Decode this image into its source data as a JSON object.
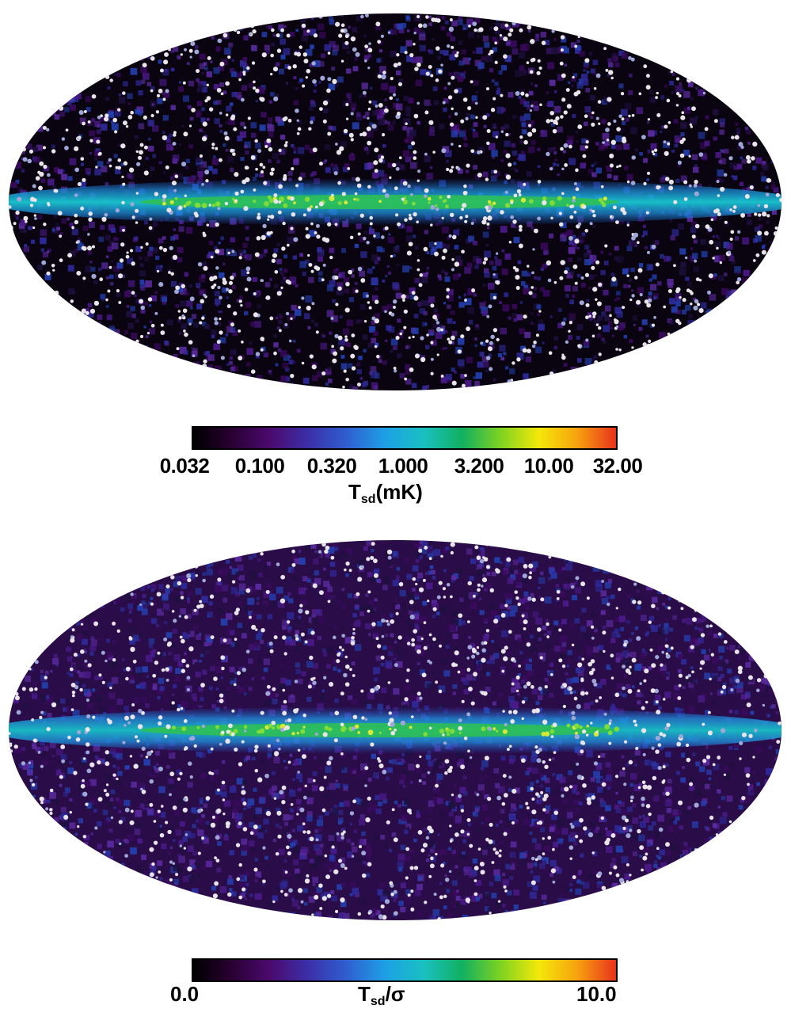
{
  "maps": [
    {
      "id": "tsd-map",
      "colorbar": {
        "ticks": [
          "0.032",
          "0.100",
          "0.320",
          "1.000",
          "3.200",
          "10.00",
          "32.00"
        ],
        "label_main": "T",
        "label_sub": "sd",
        "label_tail": "(mK)"
      }
    },
    {
      "id": "snr-map",
      "colorbar": {
        "tick_min": "0.0",
        "tick_max": "10.0",
        "label_main": "T",
        "label_sub": "sd",
        "label_tail": "/σ"
      }
    }
  ],
  "colormap": [
    "#000000",
    "#2a0033",
    "#4b0a6e",
    "#3b2fa8",
    "#2f5fd0",
    "#1ea0e6",
    "#19c0c0",
    "#12b060",
    "#7ed321",
    "#f4e80a",
    "#f7a10e",
    "#e8321c"
  ]
}
